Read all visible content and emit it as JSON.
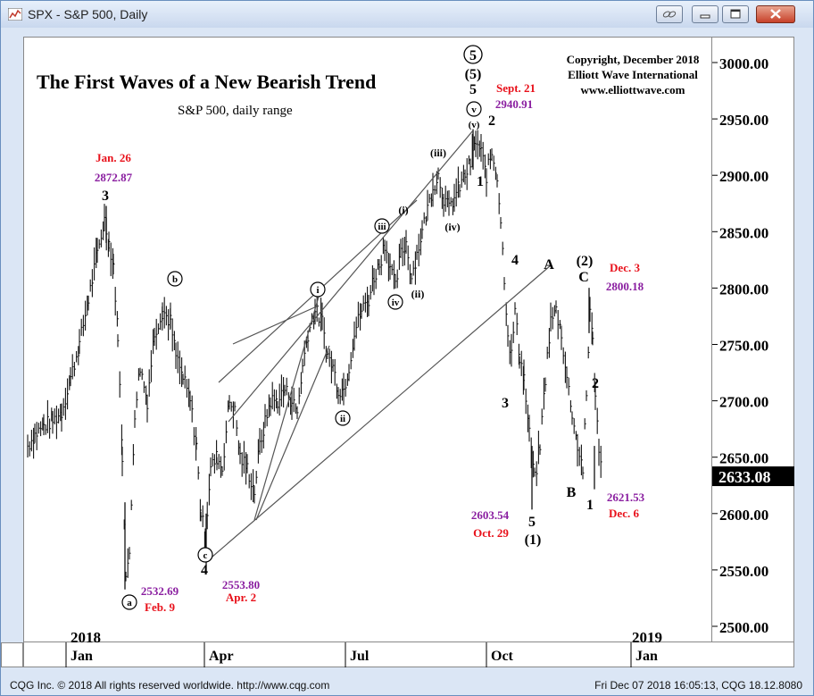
{
  "window": {
    "title": "SPX - S&P 500, Daily",
    "buttons": [
      "pin",
      "minimize",
      "maximize",
      "close"
    ]
  },
  "chart": {
    "title": "The First Waves of a New Bearish Trend",
    "subtitle": "S&P 500, daily range",
    "copyright_lines": [
      "Copyright, December 2018",
      "Elliott Wave International",
      "www.elliottwave.com"
    ],
    "last_price": "2633.08",
    "colors": {
      "date_red": "#e8101a",
      "price_purple": "#8a1ea0",
      "black": "#000000"
    }
  },
  "chart_data": {
    "type": "bar",
    "title": "The First Waves of a New Bearish Trend",
    "subtitle": "S&P 500, daily range",
    "ylim": [
      2480,
      3020
    ],
    "y_ticks": [
      "3000.00",
      "2950.00",
      "2900.00",
      "2850.00",
      "2800.00",
      "2750.00",
      "2700.00",
      "2650.00",
      "2600.00",
      "2550.00",
      "2500.00"
    ],
    "x_ticks": [
      "Jan",
      "Apr",
      "Jul",
      "Oct",
      "Jan"
    ],
    "year_labels": [
      "2018",
      "2019"
    ],
    "annotations": [
      {
        "date": "Jan. 26",
        "price": "2872.87",
        "wave": "3"
      },
      {
        "date": "Feb. 9",
        "price": "2532.69",
        "wave": "a"
      },
      {
        "date": "Apr. 2",
        "price": "2553.80",
        "wave": "c"
      },
      {
        "date": "Sept. 21",
        "price": "2940.91",
        "wave": "5"
      },
      {
        "date": "Oct. 29",
        "price": "2603.54",
        "wave": "5"
      },
      {
        "date": "Dec. 3",
        "price": "2800.18",
        "wave": "C"
      },
      {
        "date": "Dec. 6",
        "price": "2621.53",
        "wave": "1"
      }
    ],
    "wave_labels": [
      "3",
      "b",
      "4",
      "a",
      "c",
      "i",
      "ii",
      "iii",
      "iv",
      "(i)",
      "(ii)",
      "(iii)",
      "(iv)",
      "v",
      "(v)",
      "5",
      "(5)",
      "5",
      "1",
      "2",
      "3",
      "4",
      "5",
      "(1)",
      "A",
      "B",
      "C",
      "(2)",
      "1",
      "2"
    ]
  },
  "status": {
    "left": "CQG Inc. © 2018 All rights reserved worldwide. http://www.cqg.com",
    "right": "Fri Dec 07 2018 16:05:13, CQG 18.12.8080"
  }
}
